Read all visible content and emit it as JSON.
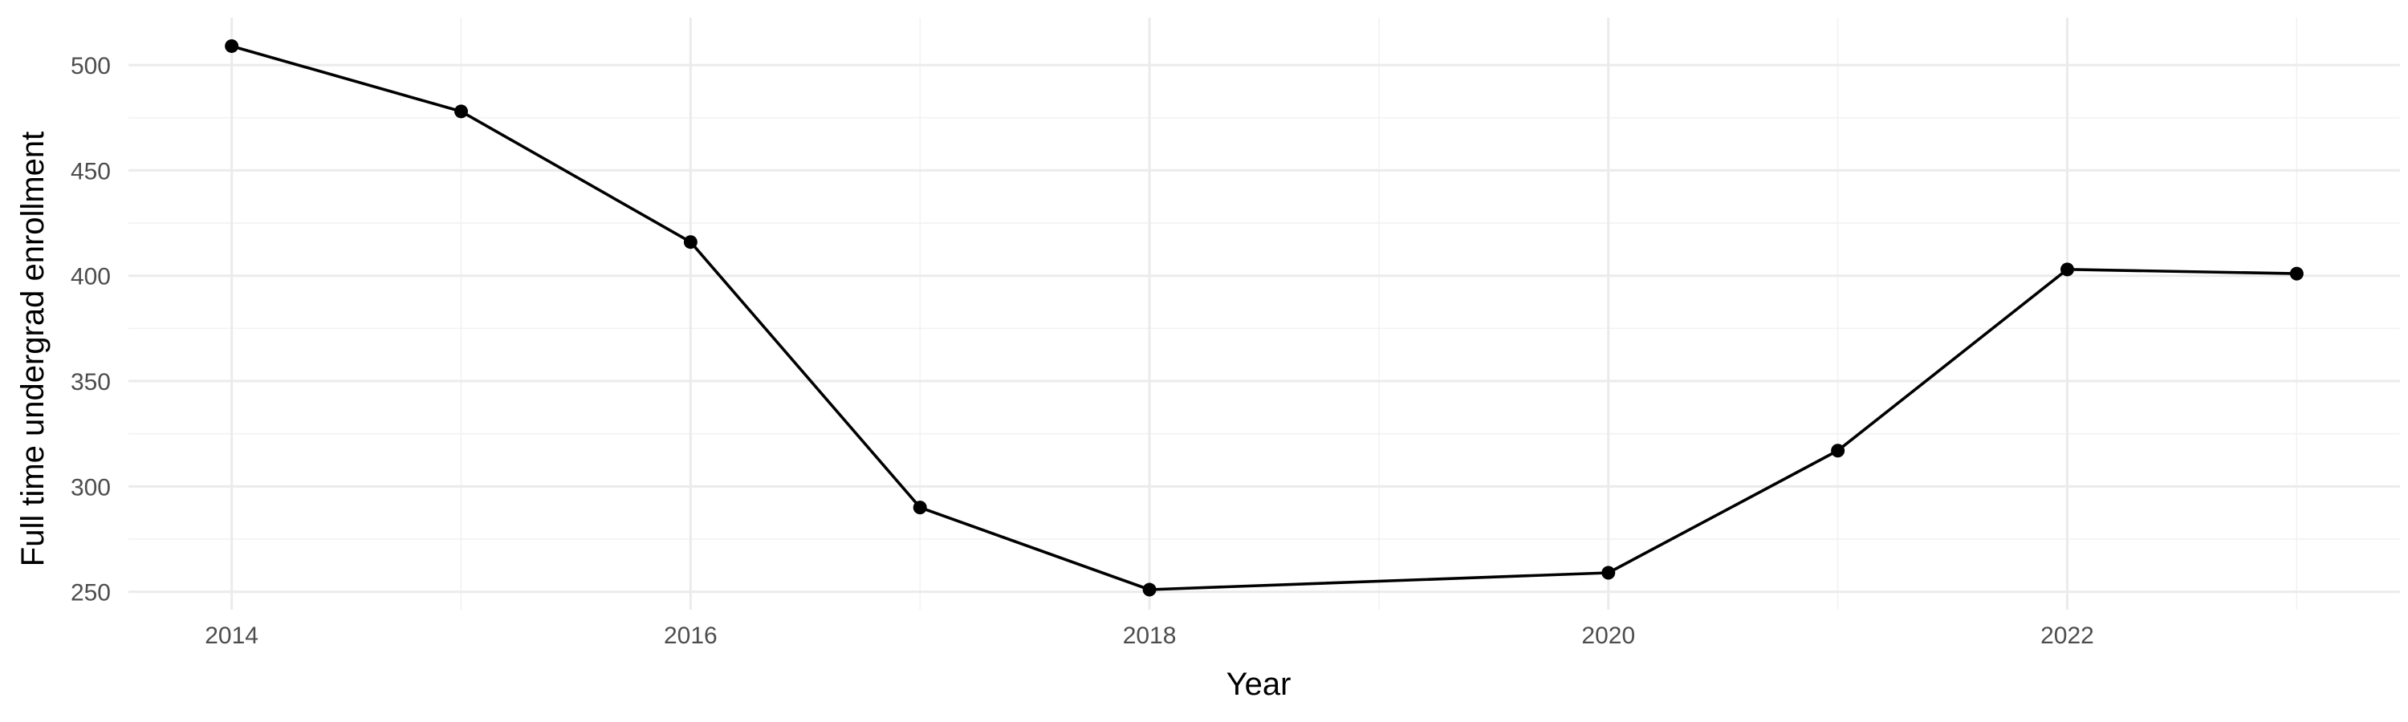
{
  "chart_data": {
    "type": "line",
    "xlabel": "Year",
    "ylabel": "Full time undergrad enrollment",
    "x": [
      2014,
      2015,
      2016,
      2017,
      2018,
      2020,
      2021,
      2022,
      2023
    ],
    "series": [
      {
        "values": [
          509,
          478,
          416,
          290,
          251,
          259,
          317,
          403,
          401
        ]
      }
    ],
    "xlim": [
      2013.55,
      2023.45
    ],
    "ylim": [
      241.5,
      522.5
    ],
    "x_ticks": [
      2014,
      2016,
      2018,
      2020,
      2022
    ],
    "y_ticks": [
      250,
      300,
      350,
      400,
      450,
      500
    ],
    "grid": true,
    "legend": "none",
    "colors": {
      "line": "#000000",
      "points": "#000000",
      "grid": "#ebebeb"
    }
  }
}
